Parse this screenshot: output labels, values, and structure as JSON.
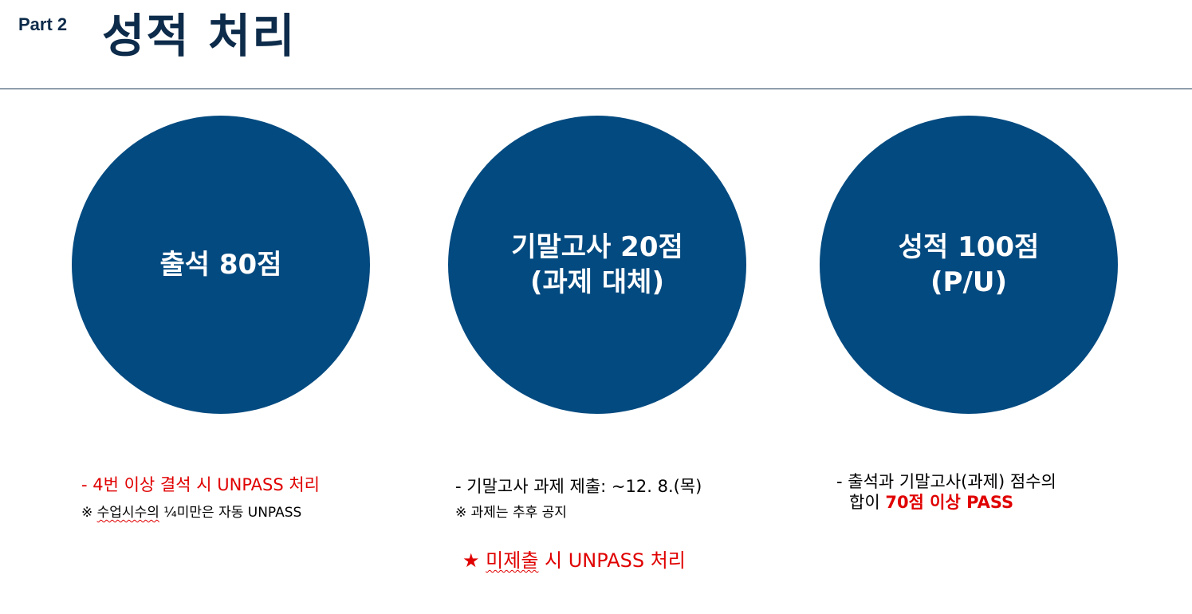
{
  "header": {
    "part_label": "Part 2",
    "title": "성적 처리"
  },
  "circles": [
    {
      "lines": [
        "출석 80점"
      ]
    },
    {
      "lines": [
        "기말고사 20점",
        "(과제 대체)"
      ]
    },
    {
      "lines": [
        "성적 100점",
        "(P/U)"
      ]
    }
  ],
  "attendance_notes": {
    "rule": "-  4번  이상  결석  시  UNPASS  처리",
    "sub_prefix": "※ ",
    "sub_squiggle": "수업시수의",
    "sub_rest": " ¼미만은 자동 UNPASS"
  },
  "final_notes": {
    "deadline": "-  기말고사  과제  제출:  ~12.  8.(목)",
    "sub": "※ 과제는 추후 공지",
    "warning_star": "★",
    "warning_squiggle": "미제출",
    "warning_rest": " 시 UNPASS 처리"
  },
  "grade_notes": {
    "line1": "-  출석과  기말고사(과제)  점수의",
    "line2_prefix": "합이 ",
    "line2_emphasis": "70점  이상  PASS"
  },
  "colors": {
    "circle_fill": "#034a80",
    "title_color": "#0d2b4a",
    "alert_red": "#e00000"
  }
}
